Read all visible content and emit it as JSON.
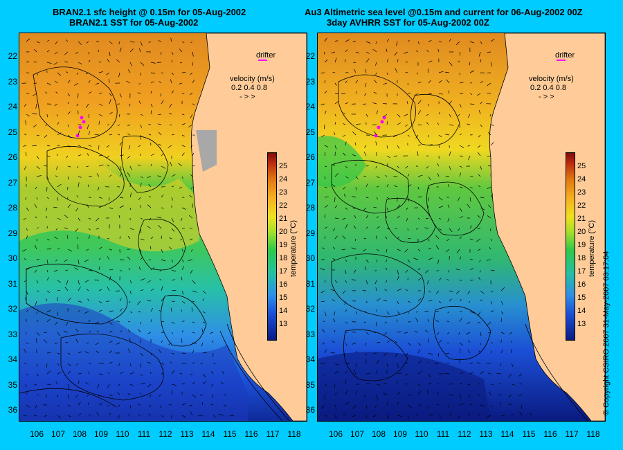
{
  "titles": {
    "left_line1": "BRAN2.1 sfc height @ 0.15m for 05-Aug-2002",
    "left_line2": "BRAN2.1 SST for 05-Aug-2002",
    "right_line1": "Au3 Altimetric sea level  @0.15m and current for 06-Aug-2002 00Z",
    "right_line2": "3day AVHRR SST for 05-Aug-2002 00Z"
  },
  "latitude_labels": [
    "22",
    "23",
    "24",
    "25",
    "26",
    "27",
    "28",
    "29",
    "30",
    "31",
    "32",
    "33",
    "34",
    "35",
    "36"
  ],
  "longitude_labels": [
    "106",
    "107",
    "108",
    "109",
    "110",
    "111",
    "112",
    "113",
    "114",
    "115",
    "116",
    "117",
    "118"
  ],
  "legend": {
    "drifter": "drifter",
    "velocity_title": "velocity (m/s)",
    "velocity_values": "0.2 0.4 0.8",
    "velocity_arrows": "- > >"
  },
  "colorbar": {
    "ticks": [
      "25",
      "24",
      "23",
      "22",
      "21",
      "20",
      "19",
      "18",
      "17",
      "16",
      "15",
      "14",
      "13"
    ],
    "unit": "temperature (°C)"
  },
  "copyright": "© Copyright CSIRO 2007    31-May-2007 03:17:04",
  "colors": {
    "background": "#00ccff",
    "land": "#ffcc99",
    "drifter": "#ff00ff"
  }
}
